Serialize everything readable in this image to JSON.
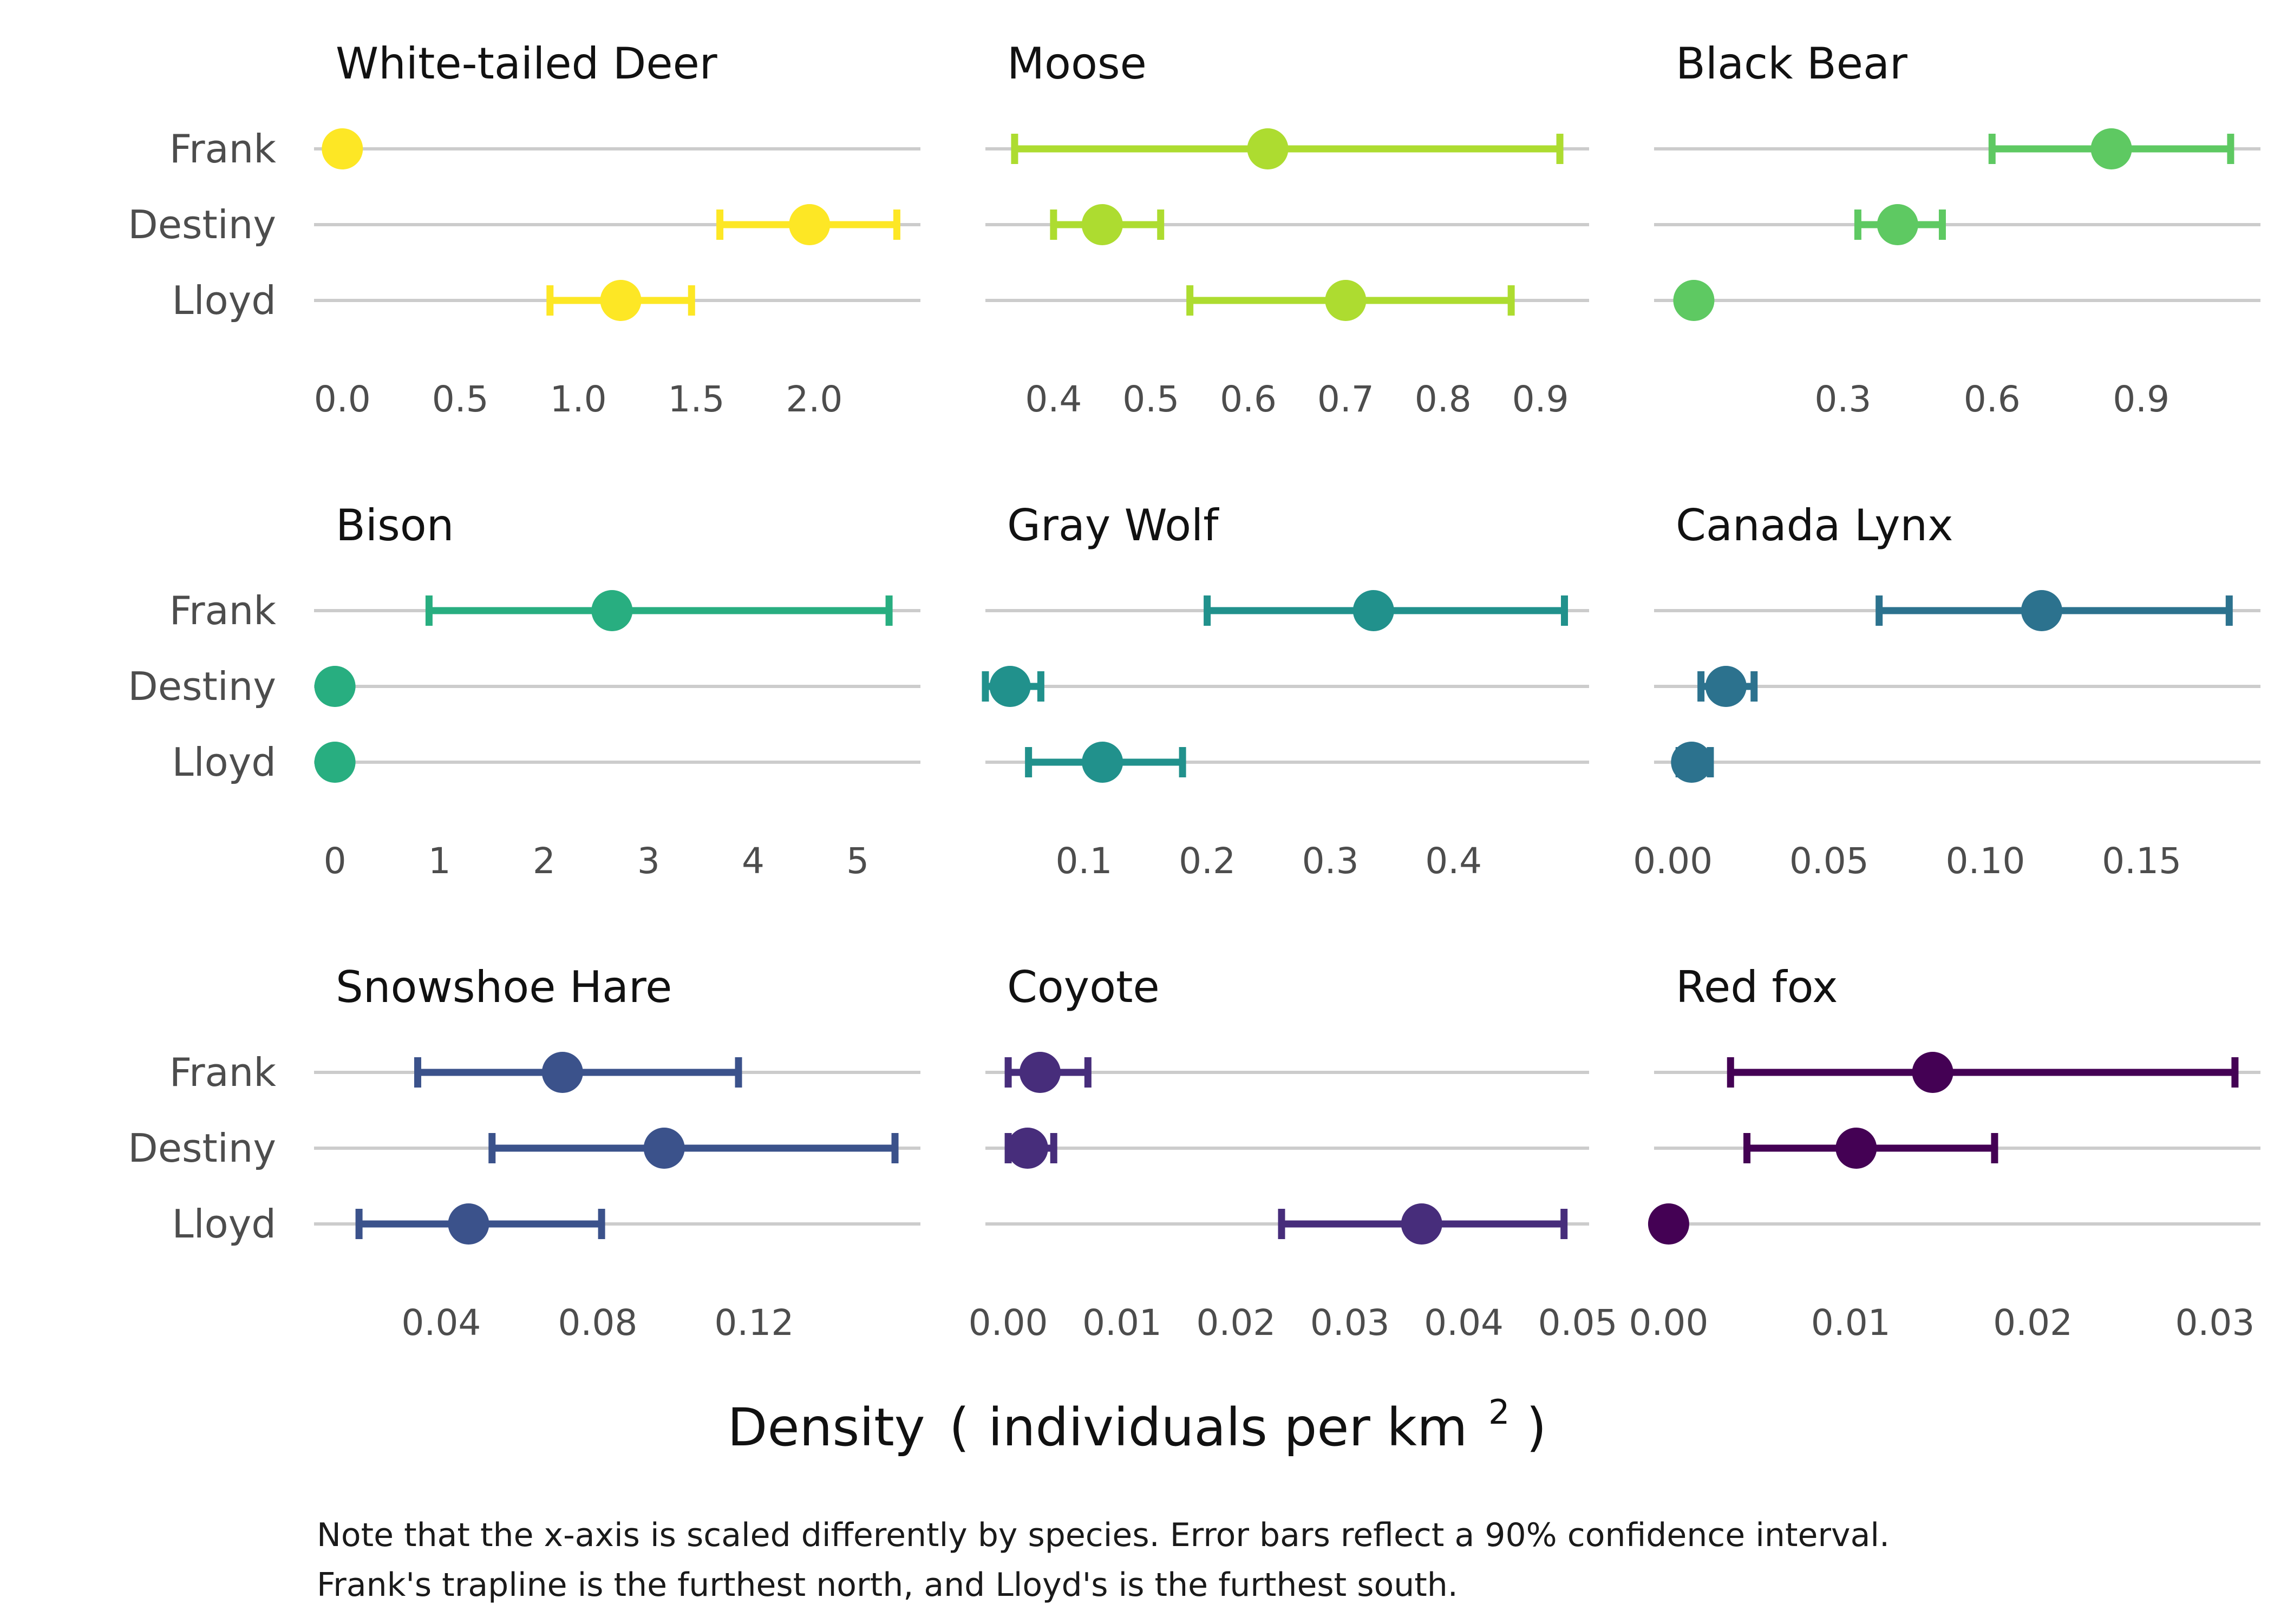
{
  "chart_data": {
    "type": "dot-errorbar-facets",
    "xlabel": {
      "main": "Density",
      "paren_open": "(",
      "text": "individuals per km",
      "superscript": "2",
      "paren_close": ")"
    },
    "rows": [
      "Frank",
      "Destiny",
      "Lloyd"
    ],
    "note": [
      "Note that the x-axis is scaled differently by species. Error bars reflect a 90% confidence interval.",
      "Frank's trapline is the furthest north, and Lloyd's is the furthest south."
    ],
    "panels": [
      {
        "title": "White-tailed Deer",
        "color": "#fde725",
        "xlim": [
          -0.12,
          2.45
        ],
        "ticks": [
          0,
          0.5,
          1,
          1.5,
          2
        ],
        "tick_labels": [
          "0.0",
          "0.5",
          "1.0",
          "1.5",
          "2.0"
        ],
        "points": [
          {
            "row": "Frank",
            "est": 0,
            "low": null,
            "high": null
          },
          {
            "row": "Destiny",
            "est": 1.98,
            "low": 1.6,
            "high": 2.35
          },
          {
            "row": "Lloyd",
            "est": 1.18,
            "low": 0.88,
            "high": 1.48
          }
        ]
      },
      {
        "title": "Moose",
        "color": "#addc30",
        "xlim": [
          0.33,
          0.95
        ],
        "ticks": [
          0.4,
          0.5,
          0.6,
          0.7,
          0.8,
          0.9
        ],
        "tick_labels": [
          "0.4",
          "0.5",
          "0.6",
          "0.7",
          "0.8",
          "0.9"
        ],
        "points": [
          {
            "row": "Frank",
            "est": 0.62,
            "low": 0.36,
            "high": 0.92
          },
          {
            "row": "Destiny",
            "est": 0.45,
            "low": 0.4,
            "high": 0.51
          },
          {
            "row": "Lloyd",
            "est": 0.7,
            "low": 0.54,
            "high": 0.87
          }
        ]
      },
      {
        "title": "Black Bear",
        "color": "#5ec962",
        "xlim": [
          -0.08,
          1.14
        ],
        "ticks": [
          0.3,
          0.6,
          0.9
        ],
        "tick_labels": [
          "0.3",
          "0.6",
          "0.9"
        ],
        "points": [
          {
            "row": "Frank",
            "est": 0.84,
            "low": 0.6,
            "high": 1.08
          },
          {
            "row": "Destiny",
            "est": 0.41,
            "low": 0.33,
            "high": 0.5
          },
          {
            "row": "Lloyd",
            "est": 0.0,
            "low": null,
            "high": null
          }
        ]
      },
      {
        "title": "Bison",
        "color": "#28ae80",
        "xlim": [
          -0.2,
          5.6
        ],
        "ticks": [
          0,
          1,
          2,
          3,
          4,
          5
        ],
        "tick_labels": [
          "0",
          "1",
          "2",
          "3",
          "4",
          "5"
        ],
        "points": [
          {
            "row": "Frank",
            "est": 2.65,
            "low": 0.9,
            "high": 5.3
          },
          {
            "row": "Destiny",
            "est": 0,
            "low": null,
            "high": null
          },
          {
            "row": "Lloyd",
            "est": 0,
            "low": null,
            "high": null
          }
        ]
      },
      {
        "title": "Gray Wolf",
        "color": "#21918c",
        "xlim": [
          0.02,
          0.51
        ],
        "ticks": [
          0.1,
          0.2,
          0.3,
          0.4
        ],
        "tick_labels": [
          "0.1",
          "0.2",
          "0.3",
          "0.4"
        ],
        "points": [
          {
            "row": "Frank",
            "est": 0.335,
            "low": 0.2,
            "high": 0.49
          },
          {
            "row": "Destiny",
            "est": 0.04,
            "low": 0.02,
            "high": 0.065
          },
          {
            "row": "Lloyd",
            "est": 0.115,
            "low": 0.055,
            "high": 0.18
          }
        ]
      },
      {
        "title": "Canada Lynx",
        "color": "#2c728e",
        "xlim": [
          -0.006,
          0.188
        ],
        "ticks": [
          0,
          0.05,
          0.1,
          0.15
        ],
        "tick_labels": [
          "0.00",
          "0.05",
          "0.10",
          "0.15"
        ],
        "points": [
          {
            "row": "Frank",
            "est": 0.118,
            "low": 0.066,
            "high": 0.178
          },
          {
            "row": "Destiny",
            "est": 0.017,
            "low": 0.009,
            "high": 0.026
          },
          {
            "row": "Lloyd",
            "est": 0.006,
            "low": 0.002,
            "high": 0.012
          }
        ]
      },
      {
        "title": "Snowshoe Hare",
        "color": "#3b528b",
        "xlim": [
          0.0075,
          0.1625
        ],
        "ticks": [
          0.04,
          0.08,
          0.12
        ],
        "tick_labels": [
          "0.04",
          "0.08",
          "0.12"
        ],
        "points": [
          {
            "row": "Frank",
            "est": 0.071,
            "low": 0.034,
            "high": 0.116
          },
          {
            "row": "Destiny",
            "est": 0.097,
            "low": 0.053,
            "high": 0.156
          },
          {
            "row": "Lloyd",
            "est": 0.047,
            "low": 0.019,
            "high": 0.081
          }
        ]
      },
      {
        "title": "Coyote",
        "color": "#472d7b",
        "xlim": [
          -0.002,
          0.051
        ],
        "ticks": [
          0,
          0.01,
          0.02,
          0.03,
          0.04,
          0.05
        ],
        "tick_labels": [
          "0.00",
          "0.01",
          "0.02",
          "0.03",
          "0.04",
          "0.05"
        ],
        "points": [
          {
            "row": "Frank",
            "est": 0.0028,
            "low": 0,
            "high": 0.007
          },
          {
            "row": "Destiny",
            "est": 0.0017,
            "low": 0,
            "high": 0.004
          },
          {
            "row": "Lloyd",
            "est": 0.0363,
            "low": 0.024,
            "high": 0.0488
          }
        ]
      },
      {
        "title": "Red fox",
        "color": "#440154",
        "xlim": [
          -0.0008,
          0.0325
        ],
        "ticks": [
          0,
          0.01,
          0.02,
          0.03
        ],
        "tick_labels": [
          "0.00",
          "0.01",
          "0.02",
          "0.03"
        ],
        "points": [
          {
            "row": "Frank",
            "est": 0.0145,
            "low": 0.0034,
            "high": 0.0311
          },
          {
            "row": "Destiny",
            "est": 0.0103,
            "low": 0.0043,
            "high": 0.0179
          },
          {
            "row": "Lloyd",
            "est": 0.0,
            "low": null,
            "high": null
          }
        ]
      }
    ]
  }
}
